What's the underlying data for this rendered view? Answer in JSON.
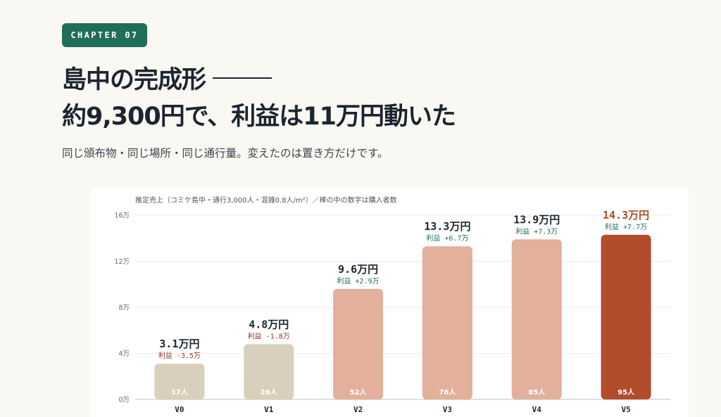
{
  "badge": "CHAPTER 07",
  "title_line1": "島中の完成形",
  "title_line2": "約9,300円で、利益は11万円動いた",
  "subtitle": "同じ頒布物・同じ場所・同じ通行量。変えたのは置き方だけです。",
  "colors": {
    "accent": "#1e6e5a",
    "highlight": "#b24c2c",
    "gray_bar": "#d8d0bc",
    "peach_bar": "#e2b09b",
    "positive": "#1e6e5a",
    "negative": "#8a3a2a"
  },
  "chart_data": {
    "type": "bar",
    "note": "推定売上（コミケ島中・通行3,000人・混雑0.8人/m²）／棒の中の数字は購入者数",
    "categories": [
      "V0",
      "V1",
      "V2",
      "V3",
      "V4",
      "V5"
    ],
    "values": [
      3.1,
      4.8,
      9.6,
      13.3,
      13.9,
      14.3
    ],
    "value_labels": [
      "3.1万円",
      "4.8万円",
      "9.6万円",
      "13.3万円",
      "13.9万円",
      "14.3万円"
    ],
    "profit_labels": [
      "利益 -3.5万",
      "利益 -1.8万",
      "利益 +2.9万",
      "利益 +6.7万",
      "利益 +7.3万",
      "利益 +7.7万"
    ],
    "profit_values": [
      -3.5,
      -1.8,
      2.9,
      6.7,
      7.3,
      7.7
    ],
    "buyer_labels": [
      "17人",
      "26人",
      "52人",
      "76人",
      "85人",
      "95人"
    ],
    "yticks": [
      "0万",
      "4万",
      "8万",
      "12万",
      "16万"
    ],
    "ytick_values": [
      0,
      4,
      8,
      12,
      16
    ],
    "ylim": [
      0,
      16
    ],
    "grid": true,
    "highlight_index": 5
  }
}
